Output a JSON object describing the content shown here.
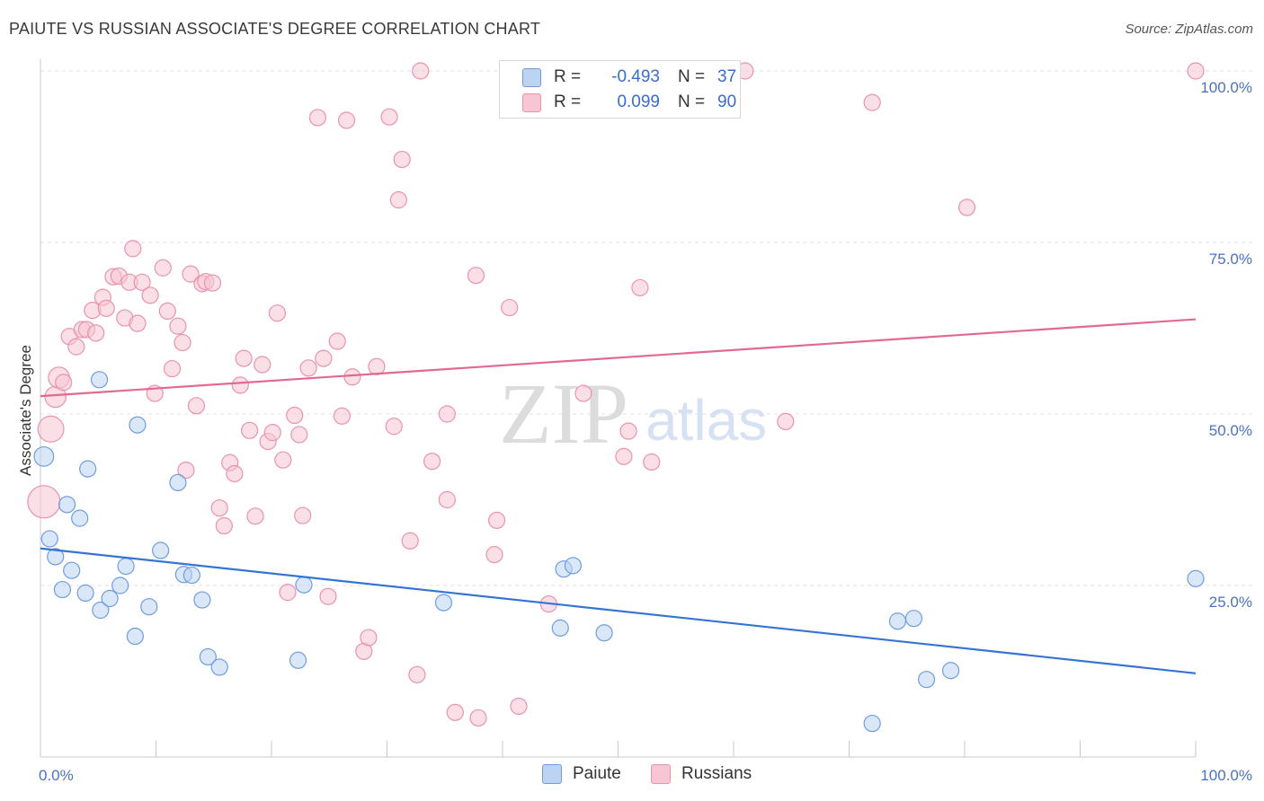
{
  "header": {
    "title": "PAIUTE VS RUSSIAN ASSOCIATE'S DEGREE CORRELATION CHART",
    "source": "Source: ZipAtlas.com"
  },
  "watermark": {
    "zip": "ZIP",
    "atlas": "atlas"
  },
  "legend": {
    "rows": [
      {
        "r_label": "R =",
        "r_value": "-0.493",
        "n_label": "N =",
        "n_value": "37",
        "color": "#a9c6ef"
      },
      {
        "r_label": "R =",
        "r_value": "0.099",
        "n_label": "N =",
        "n_value": "90",
        "color": "#f6b8ca"
      }
    ]
  },
  "bottom_legend": {
    "paiute": "Paiute",
    "russians": "Russians"
  },
  "colors": {
    "paiute_fill": "#bcd3f2",
    "paiute_stroke": "#6f9ddc",
    "paiute_line": "#3573d4",
    "russian_fill": "#f8c5d4",
    "russian_stroke": "#e993ad",
    "russian_line": "#e06a92",
    "tick_label": "#4a72c4"
  },
  "chart_data": {
    "type": "scatter",
    "title": "PAIUTE VS RUSSIAN ASSOCIATE'S DEGREE CORRELATION CHART",
    "xlabel": "",
    "ylabel": "Associate's Degree",
    "xlim": [
      0,
      100
    ],
    "ylim": [
      0,
      100
    ],
    "x_tick_labels": [
      "0.0%",
      "100.0%"
    ],
    "y_ticks": [
      25,
      50,
      75,
      100
    ],
    "y_tick_labels": [
      "25.0%",
      "50.0%",
      "75.0%",
      "100.0%"
    ],
    "grid": true,
    "legend_position": "top-center",
    "series": [
      {
        "name": "Paiute",
        "r": -0.493,
        "n": 37,
        "trend": {
          "x": [
            0,
            100
          ],
          "y": [
            30.4,
            12.2
          ]
        },
        "points": [
          {
            "x": 0.3,
            "y": 43.8,
            "s": 1.2
          },
          {
            "x": 0.8,
            "y": 31.8,
            "s": 1
          },
          {
            "x": 1.3,
            "y": 29.2,
            "s": 1
          },
          {
            "x": 2.3,
            "y": 36.8,
            "s": 1
          },
          {
            "x": 1.9,
            "y": 24.4,
            "s": 1
          },
          {
            "x": 2.7,
            "y": 27.2,
            "s": 1
          },
          {
            "x": 3.4,
            "y": 34.8,
            "s": 1
          },
          {
            "x": 4.1,
            "y": 42.0,
            "s": 1
          },
          {
            "x": 3.9,
            "y": 23.9,
            "s": 1
          },
          {
            "x": 5.1,
            "y": 55.0,
            "s": 1
          },
          {
            "x": 5.2,
            "y": 21.4,
            "s": 1
          },
          {
            "x": 6.0,
            "y": 23.1,
            "s": 1
          },
          {
            "x": 6.9,
            "y": 25.0,
            "s": 1
          },
          {
            "x": 7.4,
            "y": 27.8,
            "s": 1
          },
          {
            "x": 8.2,
            "y": 17.6,
            "s": 1
          },
          {
            "x": 8.4,
            "y": 48.4,
            "s": 1
          },
          {
            "x": 9.4,
            "y": 21.9,
            "s": 1
          },
          {
            "x": 10.4,
            "y": 30.1,
            "s": 1
          },
          {
            "x": 11.9,
            "y": 40.0,
            "s": 1
          },
          {
            "x": 12.4,
            "y": 26.6,
            "s": 1
          },
          {
            "x": 13.1,
            "y": 26.5,
            "s": 1
          },
          {
            "x": 14.0,
            "y": 22.9,
            "s": 1
          },
          {
            "x": 14.5,
            "y": 14.6,
            "s": 1
          },
          {
            "x": 15.5,
            "y": 13.1,
            "s": 1
          },
          {
            "x": 22.3,
            "y": 14.1,
            "s": 1
          },
          {
            "x": 22.8,
            "y": 25.1,
            "s": 1
          },
          {
            "x": 34.9,
            "y": 22.5,
            "s": 1
          },
          {
            "x": 45.0,
            "y": 18.8,
            "s": 1
          },
          {
            "x": 45.3,
            "y": 27.4,
            "s": 1
          },
          {
            "x": 46.1,
            "y": 27.9,
            "s": 1
          },
          {
            "x": 48.8,
            "y": 18.1,
            "s": 1
          },
          {
            "x": 72.0,
            "y": 4.9,
            "s": 1
          },
          {
            "x": 74.2,
            "y": 19.8,
            "s": 1
          },
          {
            "x": 75.6,
            "y": 20.2,
            "s": 1
          },
          {
            "x": 76.7,
            "y": 11.3,
            "s": 1
          },
          {
            "x": 78.8,
            "y": 12.6,
            "s": 1
          },
          {
            "x": 100.0,
            "y": 26.0,
            "s": 1
          }
        ]
      },
      {
        "name": "Russians",
        "r": 0.099,
        "n": 90,
        "trend": {
          "x": [
            0,
            100
          ],
          "y": [
            52.6,
            63.8
          ]
        },
        "points": [
          {
            "x": 0.3,
            "y": 37.2,
            "s": 2.0
          },
          {
            "x": 0.9,
            "y": 47.8,
            "s": 1.6
          },
          {
            "x": 1.3,
            "y": 52.5,
            "s": 1.3
          },
          {
            "x": 1.6,
            "y": 55.3,
            "s": 1.3
          },
          {
            "x": 2.0,
            "y": 54.6,
            "s": 1
          },
          {
            "x": 2.5,
            "y": 61.3,
            "s": 1
          },
          {
            "x": 3.1,
            "y": 59.8,
            "s": 1
          },
          {
            "x": 3.6,
            "y": 62.3,
            "s": 1
          },
          {
            "x": 4.0,
            "y": 62.3,
            "s": 1
          },
          {
            "x": 4.5,
            "y": 65.1,
            "s": 1
          },
          {
            "x": 4.8,
            "y": 61.8,
            "s": 1
          },
          {
            "x": 5.4,
            "y": 67.0,
            "s": 1
          },
          {
            "x": 5.7,
            "y": 65.4,
            "s": 1
          },
          {
            "x": 6.3,
            "y": 70.0,
            "s": 1
          },
          {
            "x": 6.8,
            "y": 70.1,
            "s": 1
          },
          {
            "x": 7.3,
            "y": 64.0,
            "s": 1
          },
          {
            "x": 7.7,
            "y": 69.2,
            "s": 1
          },
          {
            "x": 8.0,
            "y": 74.1,
            "s": 1
          },
          {
            "x": 8.4,
            "y": 63.2,
            "s": 1
          },
          {
            "x": 8.8,
            "y": 69.2,
            "s": 1
          },
          {
            "x": 9.5,
            "y": 67.3,
            "s": 1
          },
          {
            "x": 9.9,
            "y": 53.0,
            "s": 1
          },
          {
            "x": 10.6,
            "y": 71.3,
            "s": 1
          },
          {
            "x": 11.0,
            "y": 65.0,
            "s": 1
          },
          {
            "x": 11.4,
            "y": 56.6,
            "s": 1
          },
          {
            "x": 11.9,
            "y": 62.8,
            "s": 1
          },
          {
            "x": 12.3,
            "y": 60.4,
            "s": 1
          },
          {
            "x": 12.6,
            "y": 41.8,
            "s": 1
          },
          {
            "x": 13.0,
            "y": 70.4,
            "s": 1
          },
          {
            "x": 13.5,
            "y": 51.2,
            "s": 1
          },
          {
            "x": 14.0,
            "y": 69.0,
            "s": 1
          },
          {
            "x": 14.3,
            "y": 69.3,
            "s": 1
          },
          {
            "x": 14.9,
            "y": 69.1,
            "s": 1
          },
          {
            "x": 15.5,
            "y": 36.3,
            "s": 1
          },
          {
            "x": 15.9,
            "y": 33.7,
            "s": 1
          },
          {
            "x": 16.4,
            "y": 42.9,
            "s": 1
          },
          {
            "x": 16.8,
            "y": 41.3,
            "s": 1
          },
          {
            "x": 17.3,
            "y": 54.2,
            "s": 1
          },
          {
            "x": 17.6,
            "y": 58.1,
            "s": 1
          },
          {
            "x": 18.1,
            "y": 47.6,
            "s": 1
          },
          {
            "x": 18.6,
            "y": 35.1,
            "s": 1
          },
          {
            "x": 19.2,
            "y": 57.2,
            "s": 1
          },
          {
            "x": 19.7,
            "y": 46.0,
            "s": 1
          },
          {
            "x": 20.1,
            "y": 47.3,
            "s": 1
          },
          {
            "x": 20.5,
            "y": 64.7,
            "s": 1
          },
          {
            "x": 21.0,
            "y": 43.3,
            "s": 1
          },
          {
            "x": 21.4,
            "y": 24.0,
            "s": 1
          },
          {
            "x": 22.0,
            "y": 49.8,
            "s": 1
          },
          {
            "x": 22.4,
            "y": 47.0,
            "s": 1
          },
          {
            "x": 22.7,
            "y": 35.2,
            "s": 1
          },
          {
            "x": 23.2,
            "y": 56.7,
            "s": 1
          },
          {
            "x": 24.0,
            "y": 93.2,
            "s": 1
          },
          {
            "x": 24.5,
            "y": 58.1,
            "s": 1
          },
          {
            "x": 24.9,
            "y": 23.4,
            "s": 1
          },
          {
            "x": 25.7,
            "y": 60.6,
            "s": 1
          },
          {
            "x": 26.1,
            "y": 49.7,
            "s": 1
          },
          {
            "x": 26.5,
            "y": 92.8,
            "s": 1
          },
          {
            "x": 27.0,
            "y": 55.4,
            "s": 1
          },
          {
            "x": 28.0,
            "y": 15.4,
            "s": 1
          },
          {
            "x": 28.4,
            "y": 17.4,
            "s": 1
          },
          {
            "x": 29.1,
            "y": 56.9,
            "s": 1
          },
          {
            "x": 30.2,
            "y": 93.3,
            "s": 1
          },
          {
            "x": 30.6,
            "y": 48.2,
            "s": 1
          },
          {
            "x": 31.3,
            "y": 87.1,
            "s": 1
          },
          {
            "x": 31.0,
            "y": 81.2,
            "s": 1
          },
          {
            "x": 32.0,
            "y": 31.5,
            "s": 1
          },
          {
            "x": 32.6,
            "y": 12.0,
            "s": 1
          },
          {
            "x": 32.9,
            "y": 100.0,
            "s": 1
          },
          {
            "x": 33.9,
            "y": 43.1,
            "s": 1
          },
          {
            "x": 35.2,
            "y": 50.0,
            "s": 1
          },
          {
            "x": 35.2,
            "y": 37.5,
            "s": 1
          },
          {
            "x": 35.9,
            "y": 6.5,
            "s": 1
          },
          {
            "x": 37.7,
            "y": 70.2,
            "s": 1
          },
          {
            "x": 37.9,
            "y": 5.7,
            "s": 1
          },
          {
            "x": 39.3,
            "y": 29.5,
            "s": 1
          },
          {
            "x": 39.5,
            "y": 34.5,
            "s": 1
          },
          {
            "x": 40.6,
            "y": 65.5,
            "s": 1
          },
          {
            "x": 41.4,
            "y": 7.4,
            "s": 1
          },
          {
            "x": 44.0,
            "y": 22.3,
            "s": 1
          },
          {
            "x": 47.0,
            "y": 53.0,
            "s": 1
          },
          {
            "x": 50.5,
            "y": 43.8,
            "s": 1
          },
          {
            "x": 50.9,
            "y": 47.5,
            "s": 1
          },
          {
            "x": 51.9,
            "y": 68.4,
            "s": 1
          },
          {
            "x": 52.9,
            "y": 43.0,
            "s": 1
          },
          {
            "x": 59.3,
            "y": 100.0,
            "s": 1
          },
          {
            "x": 61.0,
            "y": 100.0,
            "s": 1
          },
          {
            "x": 64.5,
            "y": 48.9,
            "s": 1
          },
          {
            "x": 72.0,
            "y": 95.4,
            "s": 1
          },
          {
            "x": 80.2,
            "y": 80.1,
            "s": 1
          },
          {
            "x": 100.0,
            "y": 100.0,
            "s": 1
          }
        ]
      }
    ]
  }
}
